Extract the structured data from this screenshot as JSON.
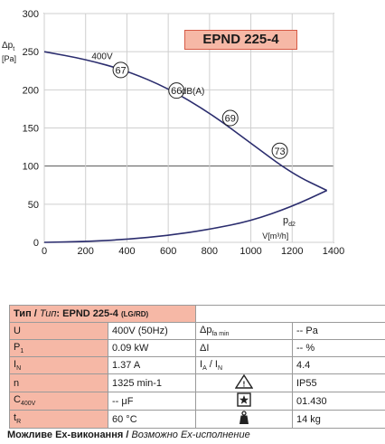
{
  "chart_data": {
    "type": "line",
    "model": "EPND 225-4",
    "ylabel": "Δpt [Pa]",
    "xlabel": "V[m³/h]",
    "xlim": [
      0,
      1400
    ],
    "ylim": [
      0,
      300
    ],
    "xticks": [
      0,
      200,
      400,
      600,
      800,
      1000,
      1200,
      1400
    ],
    "yticks": [
      0,
      50,
      100,
      150,
      200,
      250,
      300
    ],
    "grid": true,
    "series": [
      {
        "name": "400V",
        "x": [
          0,
          200,
          400,
          600,
          800,
          1000,
          1200,
          1368
        ],
        "y": [
          250,
          240,
          225,
          202,
          170,
          130,
          90,
          68
        ]
      },
      {
        "name": "pd2",
        "x": [
          0,
          200,
          400,
          600,
          800,
          1000,
          1200,
          1368
        ],
        "y": [
          0,
          1,
          4,
          9,
          17,
          28,
          47,
          68
        ]
      }
    ],
    "annotations": [
      {
        "text": "67",
        "x": 370,
        "y": 226
      },
      {
        "text": "66",
        "x": 640,
        "y": 199
      },
      {
        "text": "dB(A)",
        "x": 720,
        "y": 199
      },
      {
        "text": "69",
        "x": 900,
        "y": 163
      },
      {
        "text": "73",
        "x": 1140,
        "y": 120
      },
      {
        "text": "pd2",
        "x": 1155,
        "y": 25
      },
      {
        "text": "400V",
        "x": 280,
        "y": 245
      }
    ]
  },
  "table": {
    "header": {
      "type_label": "Тип / ",
      "type_label_it": "Тип",
      "colon": ": ",
      "model": "EPND 225-4",
      "suffix": "(LG/RD)"
    },
    "rows": [
      {
        "s1": "U",
        "v1": "400V (50Hz)",
        "s2": "Δpfa min",
        "v2": "-- Pa"
      },
      {
        "s1": "P1",
        "v1": "0.09 kW",
        "s2": "ΔI",
        "v2": "-- %"
      },
      {
        "s1": "IN",
        "v1": "1.37 A",
        "s2": "IA / IN",
        "v2": "4.4"
      },
      {
        "s1": "n",
        "v1": "1325 min-1",
        "s2": "warning-triangle-icon",
        "v2": "IP55"
      },
      {
        "s1": "C400V",
        "v1": "-- μF",
        "s2": "star-box-icon",
        "v2": "01.430"
      },
      {
        "s1": "tR",
        "v1": "60 °C",
        "s2": "weight-icon",
        "v2": "14 kg"
      }
    ]
  },
  "footer": {
    "text_bold": "Можливе Ex-виконання / ",
    "text_italic": "Возможно Ex-исполнение"
  },
  "colors": {
    "accent": "#f6b8a6",
    "curve": "#2b2d6e",
    "border": "#d65a45"
  }
}
